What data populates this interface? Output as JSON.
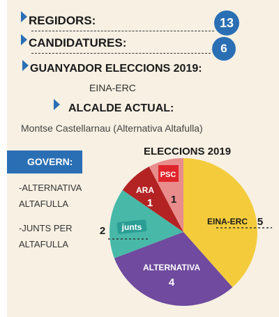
{
  "stats": {
    "regidors": {
      "label": "REGIDORS:",
      "count": "13"
    },
    "candidatures": {
      "label": "CANDIDATURES:",
      "count": "6"
    }
  },
  "winner": {
    "label": "GUANYADOR ELECCIONS 2019:",
    "party": "EINA-ERC"
  },
  "mayor": {
    "label": "ALCALDE ACTUAL:",
    "name": "Montse Castellarnau (Alternativa Altafulla)"
  },
  "govern": {
    "label": "GOVERN:",
    "items": [
      "-ALTERNATIVA",
      "ALTAFULLA",
      "-JUNTS PER",
      "ALTAFULLA"
    ]
  },
  "colors": {
    "accent": "#2a6fb4",
    "eina_erc": "#f4cc3b",
    "alternativa": "#6f4a9e",
    "junts": "#48b9a8",
    "ara": "#b42323",
    "psc": "#e88c8c",
    "psc_logo": "#e0242b"
  },
  "chart_data": {
    "type": "pie",
    "title": "ELECCIONS 2019",
    "slices": [
      {
        "label": "EINA-ERC",
        "value": 5
      },
      {
        "label": "ALTERNATIVA",
        "value": 4
      },
      {
        "label": "junts",
        "value": 2
      },
      {
        "label": "ARA",
        "value": 1
      },
      {
        "label": "PSC",
        "value": 1
      }
    ]
  }
}
